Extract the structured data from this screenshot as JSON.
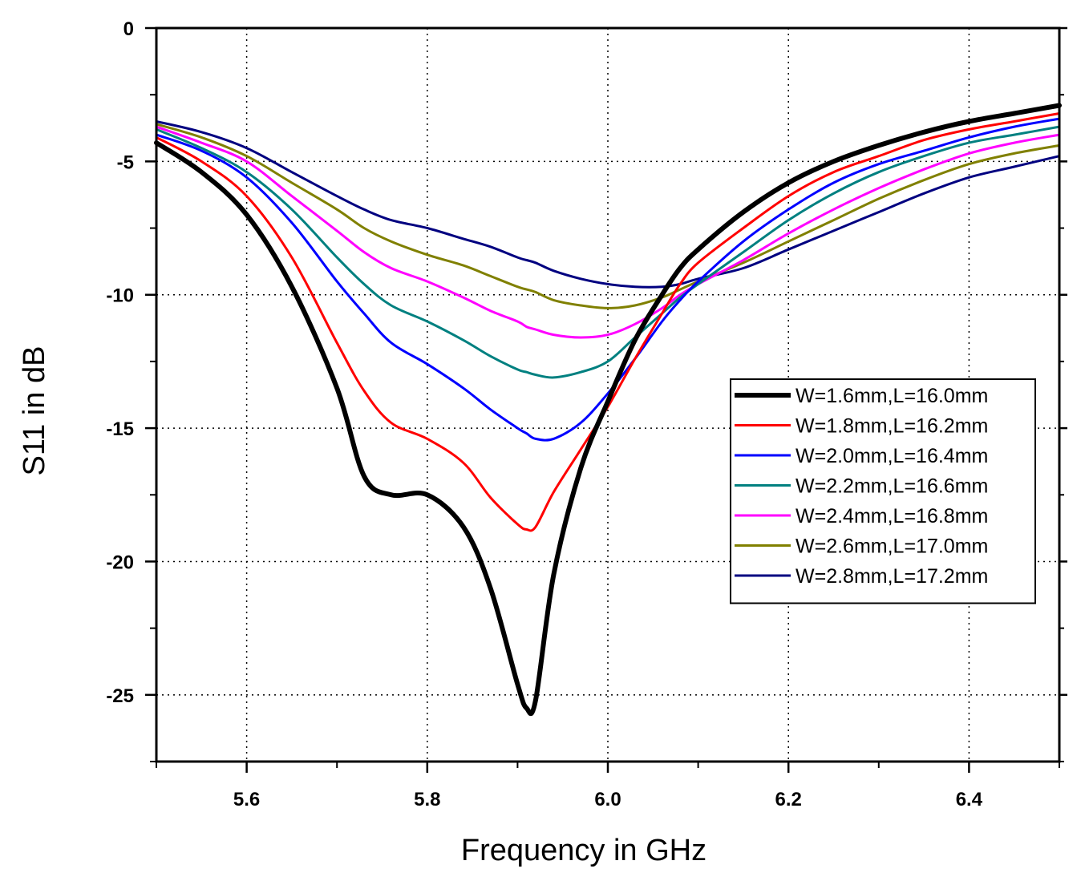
{
  "chart_data": {
    "type": "line",
    "title": "",
    "xlabel": "Frequency in GHz",
    "ylabel": "S11 in dB",
    "xlim": [
      5.5,
      6.5
    ],
    "ylim": [
      -27.5,
      0
    ],
    "xticks": [
      5.6,
      5.8,
      6.0,
      6.2,
      6.4
    ],
    "xtick_labels": [
      "5.6",
      "5.8",
      "6.0",
      "6.2",
      "6.4"
    ],
    "yticks": [
      0,
      -5,
      -10,
      -15,
      -20,
      -25
    ],
    "ytick_labels": [
      "0",
      "-5",
      "-10",
      "-15",
      "-20",
      "-25"
    ],
    "grid": true,
    "legend_position": "right",
    "x": [
      5.5,
      5.55,
      5.6,
      5.65,
      5.7,
      5.73,
      5.76,
      5.8,
      5.84,
      5.87,
      5.9,
      5.91,
      5.92,
      5.94,
      5.97,
      6.0,
      6.03,
      6.06,
      6.08,
      6.1,
      6.15,
      6.2,
      6.25,
      6.3,
      6.35,
      6.4,
      6.45,
      6.5
    ],
    "series": [
      {
        "name": "W=1.6mm,L=16.0mm",
        "color": "#000000",
        "values": [
          -4.3,
          -5.4,
          -7.0,
          -9.7,
          -13.5,
          -16.8,
          -17.5,
          -17.5,
          -18.7,
          -21.0,
          -24.6,
          -25.5,
          -25.2,
          -20.5,
          -16.5,
          -14.0,
          -11.7,
          -10.0,
          -9.0,
          -8.3,
          -6.9,
          -5.8,
          -5.0,
          -4.4,
          -3.9,
          -3.5,
          -3.2,
          -2.9
        ]
      },
      {
        "name": "W=1.8mm,L=16.2mm",
        "color": "#ff0000",
        "values": [
          -4.1,
          -5.0,
          -6.3,
          -8.6,
          -11.8,
          -13.6,
          -14.8,
          -15.4,
          -16.3,
          -17.6,
          -18.6,
          -18.8,
          -18.7,
          -17.4,
          -15.8,
          -14.2,
          -12.4,
          -10.7,
          -9.6,
          -8.8,
          -7.5,
          -6.3,
          -5.4,
          -4.8,
          -4.2,
          -3.8,
          -3.5,
          -3.2
        ]
      },
      {
        "name": "W=2.0mm,L=16.4mm",
        "color": "#0000ff",
        "values": [
          -4.0,
          -4.6,
          -5.6,
          -7.3,
          -9.5,
          -10.7,
          -11.8,
          -12.6,
          -13.5,
          -14.3,
          -15.0,
          -15.2,
          -15.4,
          -15.4,
          -14.8,
          -13.7,
          -12.4,
          -11.0,
          -10.2,
          -9.5,
          -8.0,
          -6.8,
          -5.8,
          -5.1,
          -4.6,
          -4.1,
          -3.7,
          -3.4
        ]
      },
      {
        "name": "W=2.2mm,L=16.6mm",
        "color": "#008080",
        "values": [
          -3.8,
          -4.5,
          -5.4,
          -6.8,
          -8.6,
          -9.6,
          -10.4,
          -11.0,
          -11.7,
          -12.3,
          -12.8,
          -12.9,
          -13.0,
          -13.1,
          -12.9,
          -12.5,
          -11.6,
          -10.7,
          -10.1,
          -9.6,
          -8.4,
          -7.2,
          -6.2,
          -5.4,
          -4.8,
          -4.3,
          -4.0,
          -3.7
        ]
      },
      {
        "name": "W=2.4mm,L=16.8mm",
        "color": "#ff00ff",
        "values": [
          -3.7,
          -4.3,
          -5.0,
          -6.3,
          -7.6,
          -8.4,
          -9.0,
          -9.5,
          -10.1,
          -10.6,
          -11.0,
          -11.2,
          -11.3,
          -11.5,
          -11.6,
          -11.5,
          -11.1,
          -10.5,
          -10.0,
          -9.6,
          -8.7,
          -7.7,
          -6.8,
          -6.0,
          -5.3,
          -4.7,
          -4.3,
          -4.0
        ]
      },
      {
        "name": "W=2.6mm,L=17.0mm",
        "color": "#808000",
        "values": [
          -3.6,
          -4.1,
          -4.8,
          -5.8,
          -6.8,
          -7.5,
          -8.0,
          -8.5,
          -8.9,
          -9.3,
          -9.7,
          -9.8,
          -9.9,
          -10.2,
          -10.4,
          -10.5,
          -10.4,
          -10.1,
          -9.8,
          -9.5,
          -8.8,
          -8.0,
          -7.2,
          -6.4,
          -5.7,
          -5.1,
          -4.7,
          -4.4
        ]
      },
      {
        "name": "W=2.8mm,L=17.2mm",
        "color": "#000080",
        "values": [
          -3.5,
          -3.9,
          -4.5,
          -5.4,
          -6.3,
          -6.8,
          -7.2,
          -7.5,
          -7.9,
          -8.2,
          -8.6,
          -8.7,
          -8.8,
          -9.1,
          -9.4,
          -9.6,
          -9.7,
          -9.7,
          -9.6,
          -9.4,
          -9.0,
          -8.3,
          -7.6,
          -6.9,
          -6.2,
          -5.6,
          -5.2,
          -4.8
        ]
      }
    ]
  }
}
